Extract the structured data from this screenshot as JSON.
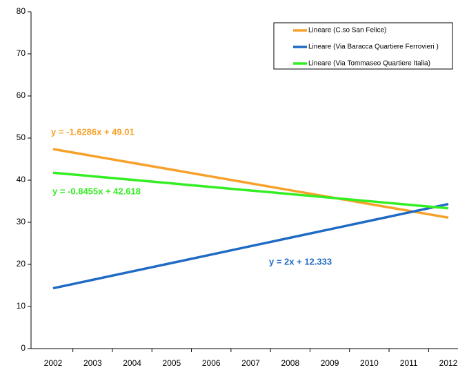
{
  "chart_data": {
    "type": "line",
    "categories": [
      "2002",
      "2003",
      "2004",
      "2005",
      "2006",
      "2007",
      "2008",
      "2009",
      "2010",
      "2011",
      "2012"
    ],
    "series": [
      {
        "name": "Lineare (C.so San Felice)",
        "color": "#f7a12a",
        "values": [
          47.38,
          45.75,
          44.12,
          42.5,
          40.87,
          39.24,
          37.61,
          35.98,
          34.35,
          32.72,
          31.1
        ]
      },
      {
        "name": "Lineare (Via Baracca  Quartiere Ferrovieri )",
        "color": "#1f6ac4",
        "values": [
          14.33,
          16.33,
          18.33,
          20.33,
          22.33,
          24.33,
          26.33,
          28.33,
          30.33,
          32.33,
          34.33
        ]
      },
      {
        "name": "Lineare (Via Tommaseo  Quartiere Italia)",
        "color": "#33ee22",
        "values": [
          41.77,
          40.93,
          40.08,
          39.24,
          38.39,
          37.55,
          36.7,
          35.85,
          35.01,
          34.16,
          33.32
        ]
      }
    ],
    "annotations": [
      {
        "text": "y = -1.6286x + 49.01",
        "color": "#f7a12a"
      },
      {
        "text": "y = 2x + 12.333",
        "color": "#1f6ac4"
      },
      {
        "text": "y = -0.8455x + 42.618",
        "color": "#33ee22"
      }
    ],
    "ylim": [
      0,
      80
    ],
    "yticks": [
      0,
      10,
      20,
      30,
      40,
      50,
      60,
      70,
      80
    ],
    "legend": "upper right"
  }
}
